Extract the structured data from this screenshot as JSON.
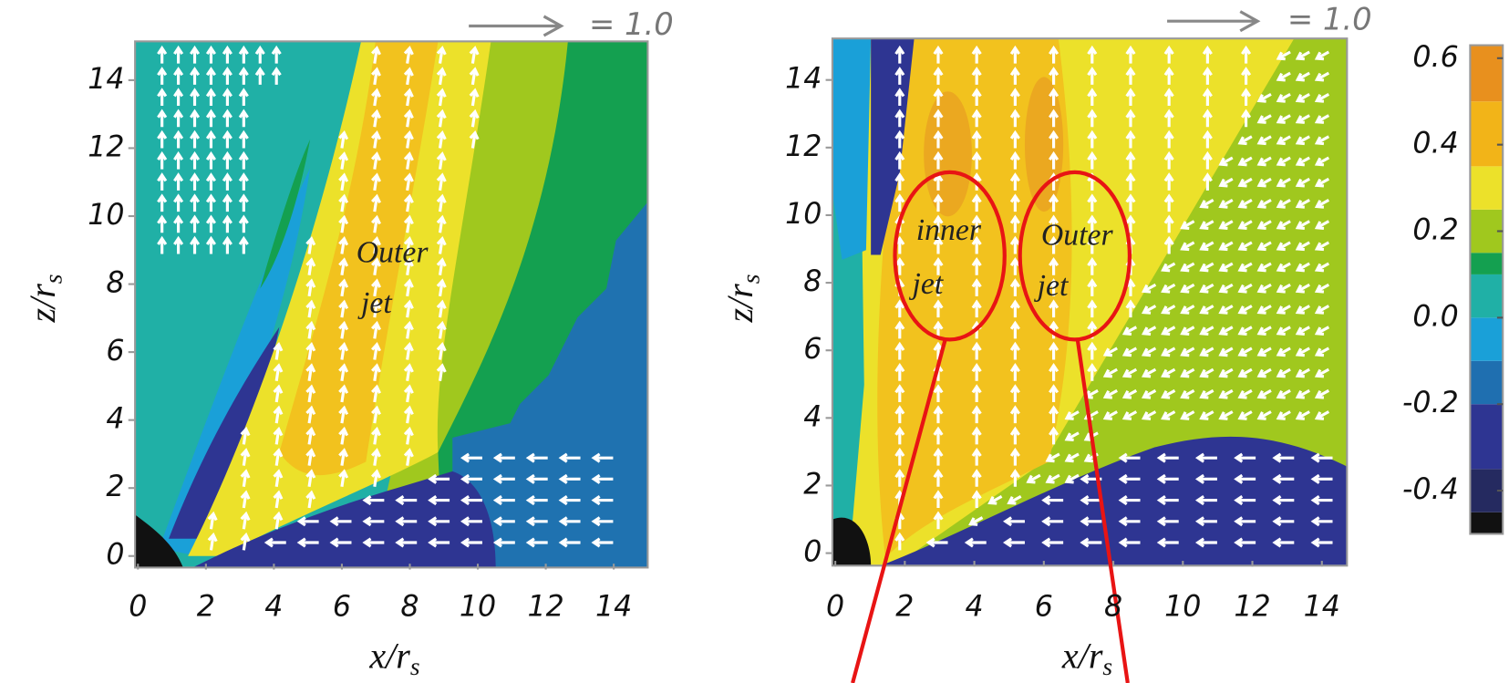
{
  "chart_data": [
    {
      "type": "contour",
      "xlabel": "x/r",
      "xlabel_sub": "s",
      "ylabel": "z/r",
      "ylabel_sub": "s",
      "xlim": [
        0,
        15
      ],
      "ylim": [
        0,
        15
      ],
      "xticks": [
        0,
        2,
        4,
        6,
        8,
        10,
        12,
        14
      ],
      "yticks": [
        0,
        2,
        4,
        6,
        8,
        10,
        12,
        14
      ],
      "vector_label": "= 1.0",
      "annotations": [
        [
          "Outer",
          "jet"
        ]
      ]
    },
    {
      "type": "contour",
      "xlabel": "x/r",
      "xlabel_sub": "s",
      "ylabel": "z/r",
      "ylabel_sub": "s",
      "xlim": [
        0,
        15
      ],
      "ylim": [
        0,
        15
      ],
      "xticks": [
        0,
        2,
        4,
        6,
        8,
        10,
        12,
        14
      ],
      "yticks": [
        0,
        2,
        4,
        6,
        8,
        10,
        12,
        14
      ],
      "vector_label": "= 1.0",
      "annotations": [
        [
          "inner",
          "jet"
        ],
        [
          "Outer",
          "jet"
        ]
      ],
      "colorbar": {
        "lim": [
          -0.5,
          0.63
        ],
        "ticks": [
          0.6,
          0.4,
          0.2,
          {
            "value": 0,
            "label": "0.0"
          },
          -0.2,
          -0.4
        ],
        "levels": [
          -0.5,
          -0.45,
          -0.35,
          -0.2,
          -0.1,
          0,
          0.1,
          0.15,
          0.25,
          0.35,
          0.5,
          0.63
        ],
        "colors": [
          "#111111",
          "#252a60",
          "#2e3592",
          "#1f6fb0",
          "#1aa0d8",
          "#20b0a6",
          "#14a050",
          "#a0c81e",
          "#ece12a",
          "#f2b418",
          "#e8901e"
        ]
      }
    }
  ]
}
